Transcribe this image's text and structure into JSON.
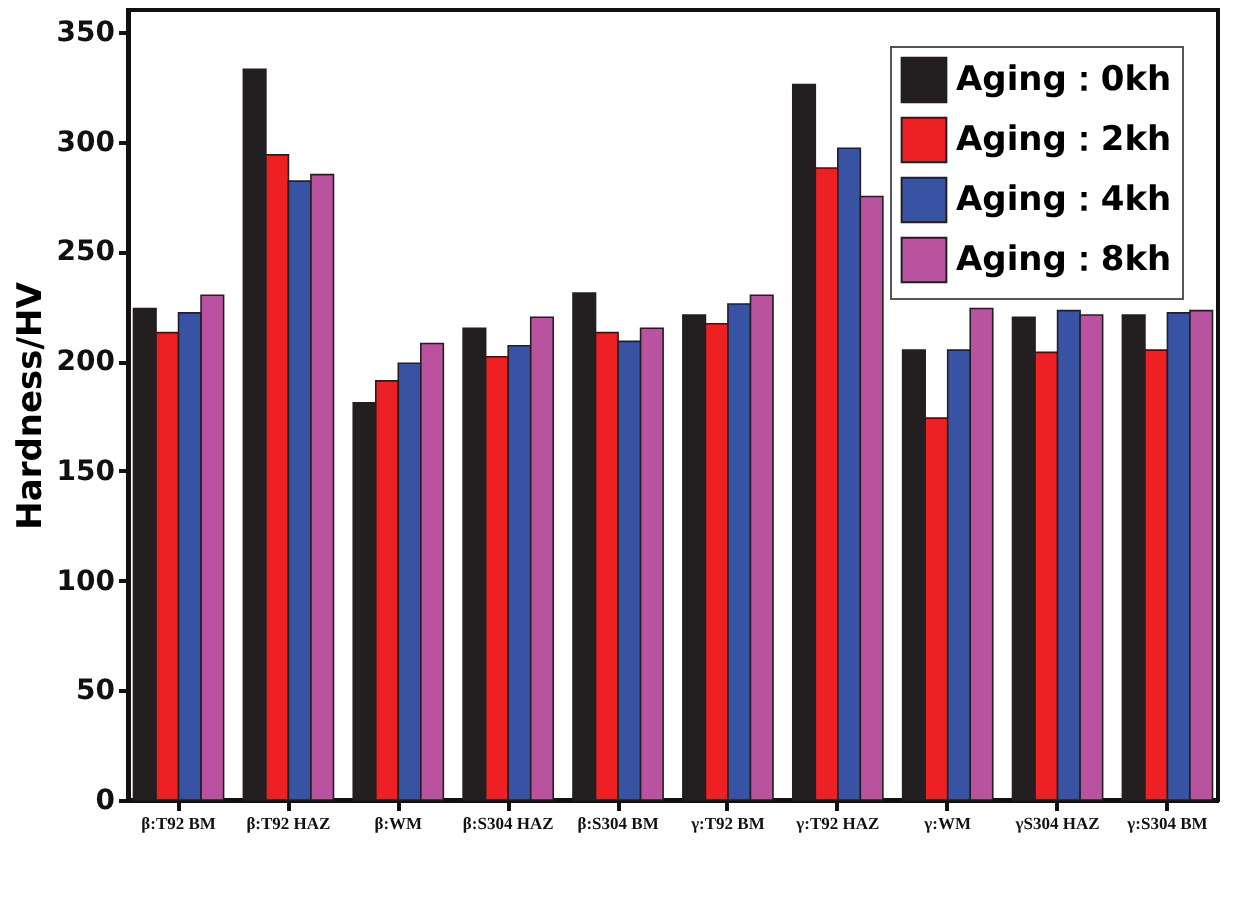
{
  "chart_data": {
    "type": "bar",
    "ylabel": "Hardness/HV",
    "categories": [
      "β:T92 BM",
      "β:T92 HAZ",
      "β:WM",
      "β:S304 HAZ",
      "β:S304 BM",
      "γ:T92 BM",
      "γ:T92 HAZ",
      "γ:WM",
      "γS304 HAZ",
      "γ:S304 BM"
    ],
    "series": [
      {
        "name": "Aging：0kh",
        "color": "#231f20",
        "values": [
          224,
          333,
          181,
          215,
          231,
          221,
          326,
          205,
          220,
          221
        ]
      },
      {
        "name": "Aging：2kh",
        "color": "#ed2024",
        "values": [
          213,
          294,
          191,
          202,
          213,
          217,
          288,
          174,
          204,
          205
        ]
      },
      {
        "name": "Aging：4kh",
        "color": "#3953a4",
        "values": [
          222,
          282,
          199,
          207,
          209,
          226,
          297,
          205,
          223,
          222
        ]
      },
      {
        "name": "Aging：8kh",
        "color": "#b9529f",
        "values": [
          230,
          285,
          208,
          220,
          215,
          230,
          275,
          224,
          221,
          223
        ]
      }
    ],
    "ylim": [
      0,
      360
    ],
    "yticks": [
      0,
      50,
      100,
      150,
      200,
      250,
      300,
      350
    ],
    "grid": false,
    "legend": "top right"
  }
}
